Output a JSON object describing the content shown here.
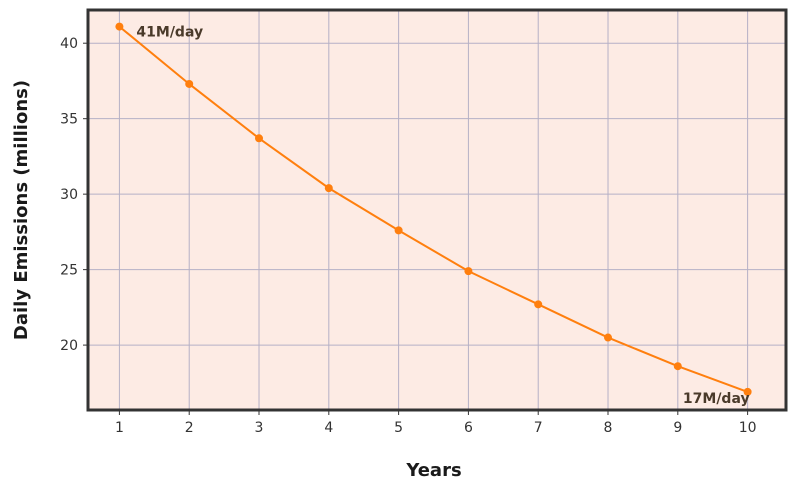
{
  "chart_data": {
    "type": "line",
    "x": [
      1,
      2,
      3,
      4,
      5,
      6,
      7,
      8,
      9,
      10
    ],
    "series": [
      {
        "values": [
          41.1,
          37.3,
          33.7,
          30.4,
          27.6,
          24.9,
          22.7,
          20.5,
          18.6,
          16.9
        ]
      }
    ],
    "title": "",
    "xlabel": "Years",
    "ylabel": "Daily Emissions (millions)",
    "xlim": [
      0.55,
      10.55
    ],
    "ylim": [
      15.7,
      42.2
    ],
    "xticks": [
      "1",
      "2",
      "3",
      "4",
      "5",
      "6",
      "7",
      "8",
      "9",
      "10"
    ],
    "yticks": [
      "20",
      "25",
      "30",
      "35",
      "40"
    ],
    "annotations": [
      {
        "text": "41M/day",
        "x": 1,
        "y": 41.1
      },
      {
        "text": "17M/day",
        "x": 10,
        "y": 16.9
      }
    ],
    "grid": true,
    "colors": {
      "line": "#ff7f0e",
      "plot_background": "#fdebe4",
      "grid": "#b5b0c6",
      "frame": "#333333"
    }
  }
}
